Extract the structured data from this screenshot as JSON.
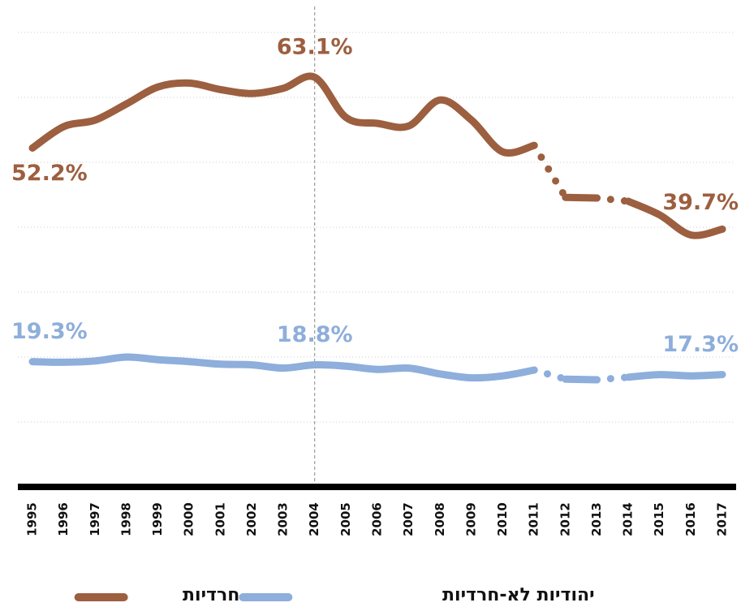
{
  "chart_data": {
    "type": "line",
    "categories": [
      "1995",
      "1996",
      "1997",
      "1998",
      "1999",
      "2000",
      "2001",
      "2002",
      "2003",
      "2004",
      "2005",
      "2006",
      "2007",
      "2008",
      "2009",
      "2010",
      "2011",
      "2012",
      "2013",
      "2014",
      "2015",
      "2016",
      "2017"
    ],
    "series": [
      {
        "name": "חרדיות",
        "color": "#9c5f3f",
        "values": [
          52.2,
          55.5,
          56.5,
          59,
          61.6,
          62.2,
          61.2,
          60.6,
          61.4,
          63.1,
          56.9,
          56,
          55.6,
          59.6,
          56.5,
          51.6,
          52.6,
          44.6,
          44.5,
          44,
          41.9,
          38.8,
          39.7
        ],
        "value_labels": [
          "52.2%",
          null,
          null,
          null,
          null,
          null,
          null,
          null,
          null,
          "63.1%",
          null,
          null,
          null,
          null,
          null,
          null,
          null,
          null,
          null,
          null,
          null,
          null,
          "39.7%"
        ]
      },
      {
        "name": "יהודיות לא-חרדיות",
        "color": "#8eaedb",
        "values": [
          19.3,
          19.2,
          19.4,
          20,
          19.6,
          19.3,
          18.9,
          18.8,
          18.3,
          18.8,
          18.6,
          18.1,
          18.3,
          17.4,
          16.8,
          17.1,
          18,
          16.6,
          16.5,
          16.9,
          17.3,
          17.1,
          17.3
        ],
        "value_labels": [
          "19.3%",
          null,
          null,
          null,
          null,
          null,
          null,
          null,
          null,
          "18.8%",
          null,
          null,
          null,
          null,
          null,
          null,
          null,
          null,
          null,
          null,
          null,
          null,
          "17.3%"
        ]
      }
    ],
    "dotted_after": [
      "2011",
      "2013"
    ],
    "vline": "2004",
    "ylim": [
      0,
      72
    ],
    "yticks": [
      0,
      10,
      20,
      30,
      40,
      50,
      60,
      70
    ],
    "grid": true
  }
}
